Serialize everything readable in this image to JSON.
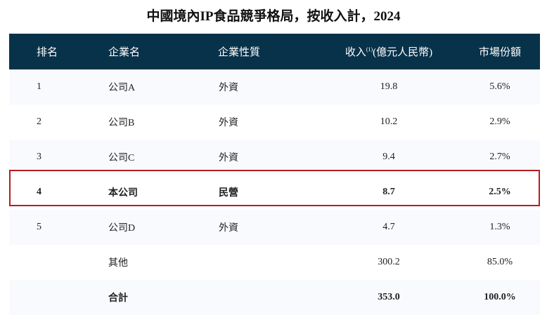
{
  "title": "中國境內IP食品競爭格局，按收入計，2024",
  "headers": {
    "rank": "排名",
    "name": "企業名",
    "type": "企業性質",
    "revenue": "收入",
    "revenue_sup": "(1)",
    "revenue_unit": "(億元人民幣)",
    "share": "市場份額"
  },
  "rows": [
    {
      "rank": "1",
      "name": "公司A",
      "type": "外資",
      "revenue": "19.8",
      "share": "5.6%"
    },
    {
      "rank": "2",
      "name": "公司B",
      "type": "外資",
      "revenue": "10.2",
      "share": "2.9%"
    },
    {
      "rank": "3",
      "name": "公司C",
      "type": "外資",
      "revenue": "9.4",
      "share": "2.7%"
    },
    {
      "rank": "4",
      "name": "本公司",
      "type": "民營",
      "revenue": "8.7",
      "share": "2.5%"
    },
    {
      "rank": "5",
      "name": "公司D",
      "type": "外資",
      "revenue": "4.7",
      "share": "1.3%"
    },
    {
      "rank": "",
      "name": "其他",
      "type": "",
      "revenue": "300.2",
      "share": "85.0%"
    },
    {
      "rank": "",
      "name": "合計",
      "type": "",
      "revenue": "353.0",
      "share": "100.0%"
    }
  ],
  "colors": {
    "header_bg": "#08324a",
    "highlight_border": "#b81c22",
    "alt_row": "#f8fafd"
  }
}
